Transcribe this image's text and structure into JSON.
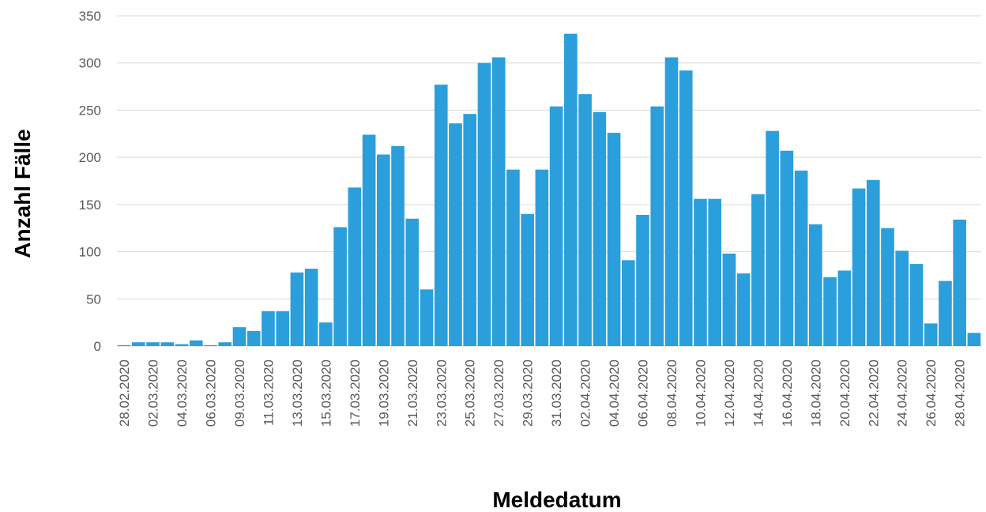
{
  "chart_data": {
    "type": "bar",
    "x_label": "Meldedatum",
    "y_label": "Anzahl Fälle",
    "categories": [
      "28.02.2020",
      null,
      "02.03.2020",
      null,
      "04.03.2020",
      null,
      "06.03.2020",
      null,
      "09.03.2020",
      null,
      "11.03.2020",
      null,
      "13.03.2020",
      null,
      "15.03.2020",
      null,
      "17.03.2020",
      null,
      "19.03.2020",
      null,
      "21.03.2020",
      null,
      "23.03.2020",
      null,
      "25.03.2020",
      null,
      "27.03.2020",
      null,
      "29.03.2020",
      null,
      "31.03.2020",
      null,
      "02.04.2020",
      null,
      "04.04.2020",
      null,
      "06.04.2020",
      null,
      "08.04.2020",
      null,
      "10.04.2020",
      null,
      "12.04.2020",
      null,
      "14.04.2020",
      null,
      "16.04.2020",
      null,
      "18.04.2020",
      null,
      "20.04.2020",
      null,
      "22.04.2020",
      null,
      "24.04.2020",
      null,
      "26.04.2020",
      null,
      "28.04.2020",
      null
    ],
    "values": [
      1,
      4,
      4,
      4,
      2,
      6,
      1,
      4,
      20,
      16,
      37,
      37,
      78,
      82,
      25,
      126,
      168,
      224,
      203,
      212,
      135,
      60,
      277,
      236,
      246,
      300,
      306,
      187,
      140,
      187,
      254,
      331,
      267,
      248,
      226,
      91,
      139,
      254,
      306,
      292,
      156,
      156,
      98,
      77,
      161,
      228,
      207,
      186,
      129,
      73,
      80,
      167,
      176,
      125,
      101,
      87,
      24,
      69,
      134,
      14
    ],
    "color": "#2a9fdb",
    "ylim": [
      0,
      350
    ],
    "yticks": [
      0,
      50,
      100,
      150,
      200,
      250,
      300,
      350
    ],
    "grid": true
  }
}
